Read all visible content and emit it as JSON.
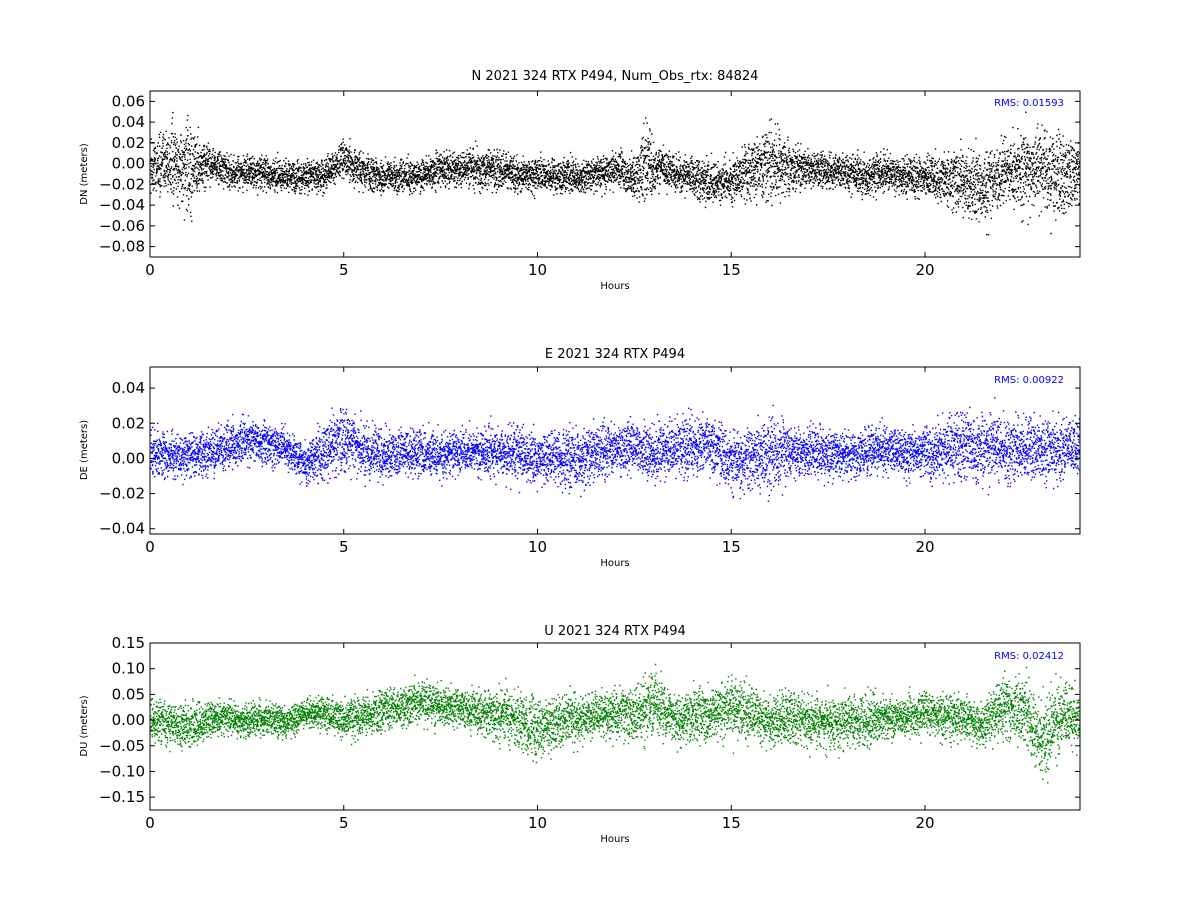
{
  "chart_data": [
    {
      "type": "scatter",
      "title": "N 2021 324 RTX  P494, Num_Obs_rtx: 84824",
      "xlabel": "Hours",
      "ylabel": "DN (meters)",
      "xlim": [
        0,
        24
      ],
      "ylim": [
        -0.09,
        0.07
      ],
      "xticks": [
        0,
        5,
        10,
        15,
        20
      ],
      "xtick_labels": [
        "0",
        "5",
        "10",
        "15",
        "20"
      ],
      "yticks": [
        -0.08,
        -0.06,
        -0.04,
        -0.02,
        0.0,
        0.02,
        0.04,
        0.06
      ],
      "ytick_labels": [
        "−0.08",
        "−0.06",
        "−0.04",
        "−0.02",
        "0.00",
        "0.02",
        "0.04",
        "0.06"
      ],
      "annotation": "RMS:  0.01593",
      "color": "#000000",
      "grid": false,
      "series": [
        {
          "x": [
            0,
            0.5,
            1,
            1.5,
            2,
            2.5,
            3,
            3.5,
            4,
            4.5,
            5,
            5.5,
            6,
            6.5,
            7,
            7.5,
            8,
            8.5,
            9,
            9.5,
            10,
            10.5,
            11,
            11.5,
            12,
            12.5,
            12.8,
            13,
            13.5,
            14,
            14.5,
            15,
            15.5,
            16,
            16.5,
            17,
            17.5,
            18,
            18.5,
            19,
            19.5,
            20,
            20.5,
            21,
            21.5,
            22,
            22.5,
            23,
            23.5,
            24
          ],
          "y_center": [
            -0.002,
            0.002,
            -0.004,
            0.0,
            -0.008,
            -0.008,
            -0.009,
            -0.012,
            -0.012,
            -0.01,
            0.004,
            -0.006,
            -0.012,
            -0.012,
            -0.01,
            -0.006,
            -0.004,
            -0.003,
            -0.006,
            -0.01,
            -0.01,
            -0.012,
            -0.012,
            -0.008,
            -0.006,
            -0.012,
            0.004,
            -0.004,
            -0.008,
            -0.012,
            -0.018,
            -0.015,
            -0.005,
            0.002,
            -0.004,
            -0.004,
            -0.006,
            -0.008,
            -0.012,
            -0.008,
            -0.012,
            -0.012,
            -0.014,
            -0.018,
            -0.022,
            -0.012,
            -0.006,
            -0.004,
            -0.01,
            -0.008
          ],
          "y_spread": [
            0.018,
            0.024,
            0.03,
            0.012,
            0.01,
            0.01,
            0.01,
            0.011,
            0.01,
            0.011,
            0.012,
            0.011,
            0.011,
            0.011,
            0.011,
            0.011,
            0.012,
            0.014,
            0.013,
            0.012,
            0.011,
            0.011,
            0.011,
            0.011,
            0.012,
            0.014,
            0.025,
            0.016,
            0.012,
            0.012,
            0.014,
            0.014,
            0.018,
            0.026,
            0.016,
            0.013,
            0.012,
            0.013,
            0.012,
            0.012,
            0.013,
            0.014,
            0.017,
            0.022,
            0.025,
            0.02,
            0.026,
            0.028,
            0.027,
            0.025
          ]
        }
      ]
    },
    {
      "type": "scatter",
      "title": "E 2021 324 RTX  P494",
      "xlabel": "Hours",
      "ylabel": "DE (meters)",
      "xlim": [
        0,
        24
      ],
      "ylim": [
        -0.043,
        0.052
      ],
      "xticks": [
        0,
        5,
        10,
        15,
        20
      ],
      "xtick_labels": [
        "0",
        "5",
        "10",
        "15",
        "20"
      ],
      "yticks": [
        -0.04,
        -0.02,
        0.0,
        0.02,
        0.04
      ],
      "ytick_labels": [
        "−0.04",
        "−0.02",
        "0.00",
        "0.02",
        "0.04"
      ],
      "annotation": "RMS:  0.00922",
      "color": "#0000ff",
      "grid": false,
      "series": [
        {
          "x": [
            0,
            0.5,
            1,
            1.5,
            2,
            2.5,
            3,
            3.5,
            4,
            4.5,
            5,
            5.5,
            6,
            6.5,
            7,
            7.5,
            8,
            8.5,
            9,
            9.5,
            10,
            10.5,
            11,
            11.5,
            12,
            12.5,
            13,
            13.5,
            14,
            14.5,
            15,
            15.5,
            16,
            16.5,
            17,
            17.5,
            18,
            18.5,
            19,
            19.5,
            20,
            20.5,
            21,
            21.5,
            22,
            22.5,
            23,
            23.5,
            24
          ],
          "y_center": [
            0.004,
            0.002,
            0.002,
            0.004,
            0.008,
            0.01,
            0.008,
            0.006,
            -0.002,
            0.004,
            0.012,
            0.004,
            0.002,
            0.004,
            0.004,
            0.002,
            0.004,
            0.004,
            0.004,
            0.002,
            0.0,
            0.002,
            0.0,
            0.004,
            0.006,
            0.008,
            0.004,
            0.006,
            0.008,
            0.008,
            -0.002,
            0.0,
            0.002,
            0.004,
            0.004,
            0.002,
            0.002,
            0.004,
            0.005,
            0.004,
            0.004,
            0.006,
            0.008,
            0.006,
            0.006,
            0.006,
            0.004,
            0.006,
            0.008
          ],
          "y_spread": [
            0.009,
            0.009,
            0.009,
            0.009,
            0.009,
            0.009,
            0.009,
            0.008,
            0.008,
            0.011,
            0.013,
            0.011,
            0.01,
            0.009,
            0.009,
            0.009,
            0.009,
            0.009,
            0.01,
            0.01,
            0.01,
            0.01,
            0.012,
            0.011,
            0.01,
            0.01,
            0.01,
            0.01,
            0.012,
            0.012,
            0.012,
            0.013,
            0.016,
            0.01,
            0.01,
            0.009,
            0.009,
            0.009,
            0.009,
            0.009,
            0.01,
            0.012,
            0.015,
            0.013,
            0.012,
            0.012,
            0.013,
            0.012,
            0.011
          ]
        }
      ]
    },
    {
      "type": "scatter",
      "title": "U 2021 324 RTX  P494",
      "xlabel": "Hours",
      "ylabel": "DU (meters)",
      "xlim": [
        0,
        24
      ],
      "ylim": [
        -0.175,
        0.15
      ],
      "xticks": [
        0,
        5,
        10,
        15,
        20
      ],
      "xtick_labels": [
        "0",
        "5",
        "10",
        "15",
        "20"
      ],
      "yticks": [
        -0.15,
        -0.1,
        -0.05,
        0.0,
        0.05,
        0.1,
        0.15
      ],
      "ytick_labels": [
        "−0.15",
        "−0.10",
        "−0.05",
        "0.00",
        "0.05",
        "0.10",
        "0.15"
      ],
      "annotation": "RMS:  0.02412",
      "color": "#008000",
      "grid": false,
      "series": [
        {
          "x": [
            0,
            0.5,
            1,
            1.5,
            2,
            2.5,
            3,
            3.5,
            4,
            4.5,
            5,
            5.5,
            6,
            6.5,
            7,
            7.5,
            8,
            8.5,
            9,
            9.5,
            10,
            10.5,
            11,
            11.5,
            12,
            12.5,
            13,
            13.5,
            14,
            14.5,
            15,
            15.5,
            16,
            16.5,
            17,
            17.5,
            18,
            18.5,
            19,
            19.5,
            20,
            20.5,
            21,
            21.5,
            22,
            22.5,
            23,
            23.5,
            24
          ],
          "y_center": [
            0.0,
            -0.005,
            -0.01,
            0.0,
            0.005,
            0.0,
            0.005,
            -0.005,
            0.015,
            0.015,
            0.0,
            0.01,
            0.02,
            0.025,
            0.035,
            0.03,
            0.025,
            0.015,
            0.01,
            0.0,
            -0.02,
            0.0,
            0.005,
            0.01,
            0.01,
            0.015,
            0.035,
            0.005,
            0.01,
            0.015,
            0.025,
            0.015,
            0.0,
            0.005,
            0.0,
            -0.005,
            0.0,
            0.0,
            0.01,
            0.005,
            0.015,
            0.01,
            0.005,
            -0.01,
            0.03,
            0.02,
            -0.04,
            0.01,
            0.005
          ],
          "y_spread": [
            0.03,
            0.03,
            0.028,
            0.025,
            0.022,
            0.022,
            0.022,
            0.02,
            0.02,
            0.025,
            0.025,
            0.028,
            0.03,
            0.03,
            0.03,
            0.028,
            0.028,
            0.028,
            0.035,
            0.04,
            0.04,
            0.035,
            0.03,
            0.03,
            0.03,
            0.035,
            0.045,
            0.03,
            0.035,
            0.035,
            0.04,
            0.035,
            0.035,
            0.035,
            0.035,
            0.035,
            0.035,
            0.035,
            0.03,
            0.028,
            0.03,
            0.03,
            0.03,
            0.03,
            0.04,
            0.045,
            0.06,
            0.045,
            0.035
          ]
        }
      ]
    }
  ]
}
